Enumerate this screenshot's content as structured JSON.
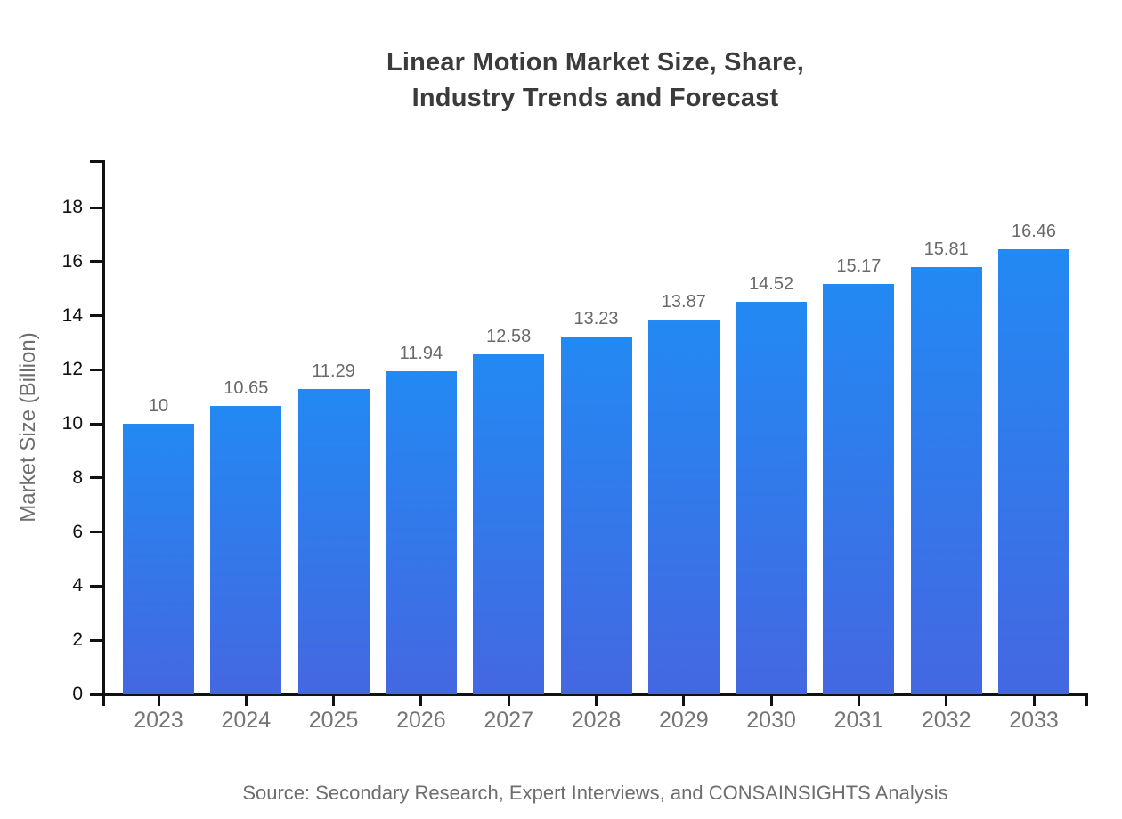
{
  "title": {
    "lines": [
      "Linear Motion Market Size, Share,",
      "Industry Trends and Forecast"
    ]
  },
  "source": "Source: Secondary Research, Expert Interviews, and CONSAINSIGHTS Analysis",
  "chart_data": {
    "type": "bar",
    "title": "Linear Motion Market Size, Share, Industry Trends and Forecast",
    "categories": [
      "2023",
      "2024",
      "2025",
      "2026",
      "2027",
      "2028",
      "2029",
      "2030",
      "2031",
      "2032",
      "2033"
    ],
    "values": [
      10,
      10.65,
      11.29,
      11.94,
      12.58,
      13.23,
      13.87,
      14.52,
      15.17,
      15.81,
      16.46
    ],
    "value_labels": [
      "10",
      "10.65",
      "11.29",
      "11.94",
      "12.58",
      "13.23",
      "13.87",
      "14.52",
      "15.17",
      "15.81",
      "16.46"
    ],
    "xlabel": "",
    "ylabel": "Market Size (Billion)",
    "ylim": [
      0,
      19.7
    ],
    "yticks": [
      0,
      2,
      4,
      6,
      8,
      10,
      12,
      14,
      16,
      18
    ],
    "grid": false,
    "legend": "none",
    "bar_color_top": "#2389f3",
    "bar_color_bottom": "#4467e1",
    "axis_color": "#111111"
  }
}
